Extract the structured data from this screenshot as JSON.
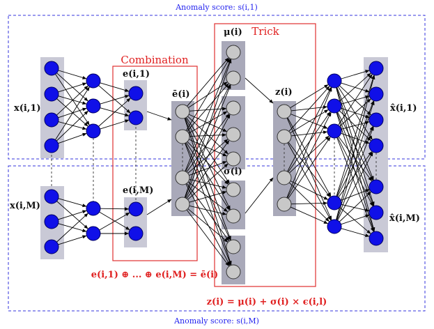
{
  "labels": {
    "anomaly_top": "Anomaly score: s(i,1)",
    "anomaly_bottom": "Anomaly score: s(i,M)",
    "combination": "Combination",
    "trick": "Trick",
    "x1": "x(i,1)",
    "xM": "x(i,M)",
    "e1": "e(i,1)",
    "eM": "e(i,M)",
    "ebar": "ē(i)",
    "mu": "μ(i)",
    "sigma": "σ(i)",
    "z": "z(i)",
    "xhat1": "x̂(i,1)",
    "xhatM": "x̂(i,M)",
    "combination_formula": "e(i,1) ⊕ ... ⊕ e(i,M) = ē(i)",
    "trick_formula": "z(i) = μ(i) + σ(i) × ϵ(i,l)"
  },
  "colors": {
    "dashed_box": "#3333dd",
    "red_box": "#e03030",
    "filled_node": "#1010e8",
    "empty_node": "#c8c8c8",
    "gray_panel": "#c9c9d6",
    "dark_panel": "#a9a9b9"
  }
}
